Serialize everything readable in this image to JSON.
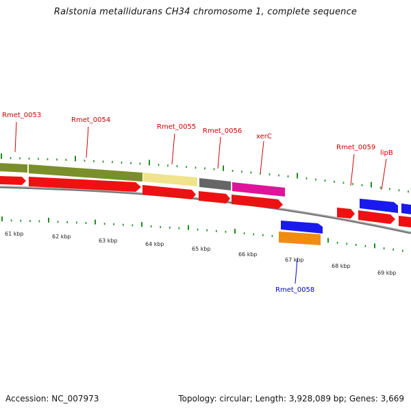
{
  "title": "Ralstonia metallidurans CH34 chromosome 1, complete sequence",
  "accession": "Accession: NC_007973",
  "summary": "Topology: circular; Length: 3,928,089 bp; Genes: 3,669",
  "colors": {
    "cds_red": "#ee1111",
    "olive": "#7a8f2a",
    "khaki": "#efe48c",
    "gray": "#666666",
    "magenta": "#e0139a",
    "blue": "#1a1aee",
    "orange": "#f08c10",
    "tick_green": "#1f8a1f",
    "label_red": "#cc0000",
    "label_blue": "#0000cc",
    "backbone": "#888888"
  },
  "scale": {
    "labels": [
      "61 kbp",
      "62 kbp",
      "63 kbp",
      "64 kbp",
      "65 kbp",
      "66 kbp",
      "67 kbp",
      "68 kbp",
      "69 kbp"
    ]
  },
  "genes_top": [
    "Rmet_0053",
    "Rmet_0054",
    "Rmet_0055",
    "Rmet_0056",
    "xerC",
    "Rmet_0059",
    "lipB"
  ],
  "genes_bottom": [
    "Rmet_0058"
  ]
}
